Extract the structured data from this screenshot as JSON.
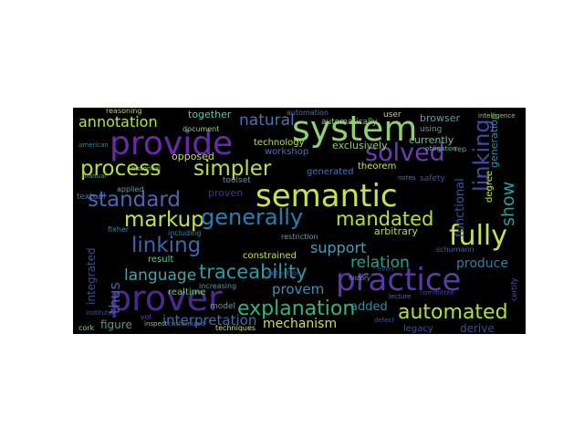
{
  "wordcloud": {
    "words": [
      {
        "text": "provide",
        "color": "#6a2aa8"
      },
      {
        "text": "system",
        "color": "#8fd16a"
      },
      {
        "text": "semantic",
        "color": "#c8e24f"
      },
      {
        "text": "prover",
        "color": "#4b2a8f"
      },
      {
        "text": "practice",
        "color": "#5a3aa6"
      },
      {
        "text": "process",
        "color": "#b7de3a"
      },
      {
        "text": "simpler",
        "color": "#b9e04a"
      },
      {
        "text": "solved",
        "color": "#6e3cb0"
      },
      {
        "text": "standard",
        "color": "#4b67b3"
      },
      {
        "text": "markup",
        "color": "#bfe34e"
      },
      {
        "text": "generally",
        "color": "#2a7fb2"
      },
      {
        "text": "mandated",
        "color": "#b7df3a"
      },
      {
        "text": "fully",
        "color": "#c8e24f"
      },
      {
        "text": "linking",
        "color": "#3f4aa6"
      },
      {
        "text": "traceability",
        "color": "#3d66b0"
      },
      {
        "text": "explanation",
        "color": "#4d9bb3"
      },
      {
        "text": "automated",
        "color": "#2c9ca6"
      },
      {
        "text": "support",
        "color": "#27a287"
      },
      {
        "text": "relation",
        "color": "#2c7fa6"
      },
      {
        "text": "produce",
        "color": "#47a3a6"
      },
      {
        "text": "language",
        "color": "#3d8fb5"
      },
      {
        "text": "provem",
        "color": "#34b37f"
      },
      {
        "text": "mechanism",
        "color": "#aadf4c"
      },
      {
        "text": "interpretation",
        "color": "#c8e24f"
      },
      {
        "text": "added",
        "color": "#3f6bb0"
      },
      {
        "text": "show",
        "color": "#2c8faa"
      },
      {
        "text": "annotation",
        "color": "#2b9c9c"
      },
      {
        "text": "natural",
        "color": "#b9e04a"
      },
      {
        "text": "thus",
        "color": "#4b72b3"
      },
      {
        "text": "figure",
        "color": "#3d66b0"
      },
      {
        "text": "derive",
        "color": "#5b9c6b"
      },
      {
        "text": "currently",
        "color": "#3a4aa6"
      },
      {
        "text": "exclusively",
        "color": "#5ec8a0"
      },
      {
        "text": "together",
        "color": "#8fd16a"
      },
      {
        "text": "opposed",
        "color": "#5ec8a0"
      },
      {
        "text": "arbitrary",
        "color": "#bfe34e"
      },
      {
        "text": "functional",
        "color": "#b7de3a"
      },
      {
        "text": "browser",
        "color": "#3a55a6"
      },
      {
        "text": "theorem",
        "color": "#5aa0a6"
      },
      {
        "text": "constrained",
        "color": "#c8e24f"
      },
      {
        "text": "realtime",
        "color": "#c8e24f"
      },
      {
        "text": "result",
        "color": "#6fcf6f"
      },
      {
        "text": "automatically",
        "color": "#5ec8a0"
      },
      {
        "text": "technology",
        "color": "#8fd16a"
      },
      {
        "text": "workshop",
        "color": "#b9e04a"
      },
      {
        "text": "generated",
        "color": "#4b72b3"
      },
      {
        "text": "proven",
        "color": "#4b72b3"
      },
      {
        "text": "toolset",
        "color": "#3a3a8a"
      },
      {
        "text": "model",
        "color": "#4d9bb3"
      },
      {
        "text": "applied",
        "color": "#5aa0a6"
      },
      {
        "text": "document",
        "color": "#5aa0a6"
      },
      {
        "text": "textual",
        "color": "#8fd16a"
      },
      {
        "text": "legacy",
        "color": "#4b72b3"
      },
      {
        "text": "safety",
        "color": "#3a55a6"
      },
      {
        "text": "using",
        "color": "#3a55a6"
      },
      {
        "text": "user",
        "color": "#5aa0a6"
      },
      {
        "text": "degree",
        "color": "#b7de3a"
      },
      {
        "text": "generation",
        "color": "#c8e24f"
      },
      {
        "text": "generates",
        "color": "#2c8faa"
      },
      {
        "text": "integrated",
        "color": "#3a4aa6"
      },
      {
        "text": "including",
        "color": "#2c8faa"
      },
      {
        "text": "increasing",
        "color": "#4d9bb3"
      },
      {
        "text": "detection",
        "color": "#3a55a6"
      },
      {
        "text": "restriction",
        "color": "#5aa0a6"
      },
      {
        "text": "techniques",
        "color": "#c8e24f"
      },
      {
        "text": "schumann",
        "color": "#3d66b0"
      },
      {
        "text": "certify",
        "color": "#6e3cb0"
      },
      {
        "text": "automation",
        "color": "#4b72b3"
      },
      {
        "text": "intelligence",
        "color": "#8fd16a"
      },
      {
        "text": "history",
        "color": "#5aa0a6"
      },
      {
        "text": "historical",
        "color": "#8fd16a"
      },
      {
        "text": "american",
        "color": "#2c8faa"
      },
      {
        "text": "reasoning",
        "color": "#b7de3a"
      },
      {
        "text": "manual",
        "color": "#5aa0a6"
      },
      {
        "text": "fixher",
        "color": "#2c8faa"
      },
      {
        "text": "lecture",
        "color": "#4b72b3"
      },
      {
        "text": "committee",
        "color": "#3a4aa6"
      },
      {
        "text": "obligation",
        "color": "#5ec8a0"
      },
      {
        "text": "conference",
        "color": "#4b72b3"
      },
      {
        "text": "institute",
        "color": "#3a55a6"
      },
      {
        "text": "inspect",
        "color": "#6fcf6f"
      },
      {
        "text": "customized",
        "color": "#4b72b3"
      },
      {
        "text": "vol",
        "color": "#6e3cb0"
      },
      {
        "text": "defect",
        "color": "#3a55a6"
      },
      {
        "text": "even",
        "color": "#3a4aa6"
      },
      {
        "text": "rep",
        "color": "#5aa0a6"
      },
      {
        "text": "notes",
        "color": "#4b72b3"
      },
      {
        "text": "cork",
        "color": "#8fd16a"
      }
    ]
  }
}
